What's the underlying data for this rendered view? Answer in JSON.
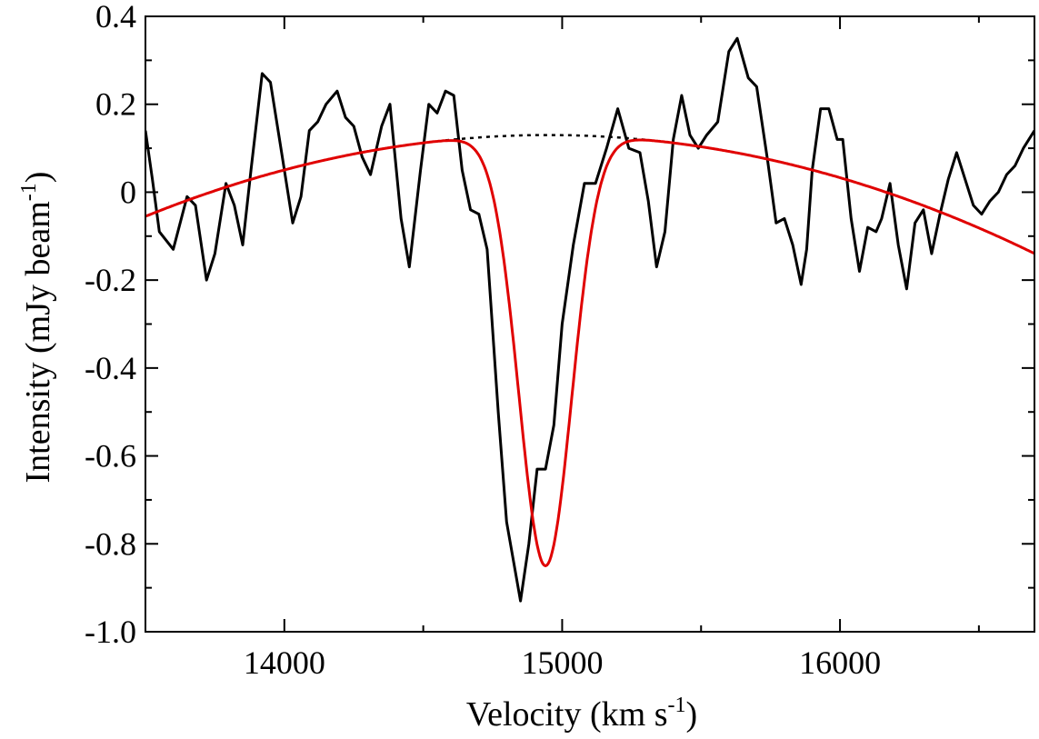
{
  "chart_data": {
    "type": "line",
    "title": "",
    "xlabel": "Velocity (km s",
    "xlabel_sup": "-1",
    "xlabel_close": ")",
    "ylabel": "Intensity (mJy beam",
    "ylabel_sup": "-1",
    "ylabel_close": ")",
    "xlim": [
      13500,
      16700
    ],
    "ylim": [
      -1.0,
      0.4
    ],
    "x_ticks": [
      14000,
      15000,
      16000
    ],
    "x_tick_labels": [
      "14000",
      "15000",
      "16000"
    ],
    "y_ticks": [
      -1.0,
      -0.8,
      -0.6,
      -0.4,
      -0.2,
      0,
      0.2,
      0.4
    ],
    "y_tick_labels": [
      "-1.0",
      "-0.8",
      "-0.6",
      "-0.4",
      "-0.2",
      "0",
      "0.2",
      "0.4"
    ],
    "grid": false,
    "colors": {
      "spectrum": "#000000",
      "fit": "#e00000",
      "baseline": "#000000"
    },
    "series": [
      {
        "name": "spectrum",
        "style": "solid",
        "x": [
          13500,
          13525,
          13550,
          13600,
          13650,
          13680,
          13720,
          13750,
          13790,
          13820,
          13850,
          13880,
          13920,
          13950,
          13990,
          14030,
          14060,
          14090,
          14120,
          14150,
          14190,
          14220,
          14250,
          14280,
          14310,
          14350,
          14380,
          14420,
          14450,
          14490,
          14520,
          14550,
          14580,
          14610,
          14640,
          14670,
          14700,
          14730,
          14770,
          14800,
          14850,
          14880,
          14910,
          14940,
          14970,
          15000,
          15040,
          15080,
          15120,
          15160,
          15200,
          15240,
          15280,
          15310,
          15340,
          15370,
          15400,
          15430,
          15460,
          15490,
          15520,
          15560,
          15600,
          15630,
          15670,
          15700,
          15740,
          15770,
          15800,
          15830,
          15860,
          15880,
          15900,
          15930,
          15960,
          15990,
          16010,
          16040,
          16070,
          16100,
          16130,
          16150,
          16180,
          16210,
          16240,
          16270,
          16300,
          16330,
          16360,
          16390,
          16420,
          16450,
          16480,
          16510,
          16540,
          16570,
          16600,
          16630,
          16660,
          16700
        ],
        "y": [
          0.14,
          0.03,
          -0.09,
          -0.13,
          -0.01,
          -0.03,
          -0.2,
          -0.14,
          0.02,
          -0.03,
          -0.12,
          0.05,
          0.27,
          0.25,
          0.09,
          -0.07,
          -0.01,
          0.14,
          0.16,
          0.2,
          0.23,
          0.17,
          0.15,
          0.08,
          0.04,
          0.15,
          0.2,
          -0.06,
          -0.17,
          0.05,
          0.2,
          0.18,
          0.23,
          0.22,
          0.05,
          -0.04,
          -0.05,
          -0.13,
          -0.5,
          -0.75,
          -0.93,
          -0.8,
          -0.63,
          -0.63,
          -0.53,
          -0.3,
          -0.12,
          0.02,
          0.02,
          0.1,
          0.19,
          0.1,
          0.09,
          -0.02,
          -0.17,
          -0.09,
          0.12,
          0.22,
          0.13,
          0.1,
          0.13,
          0.16,
          0.32,
          0.35,
          0.26,
          0.24,
          0.07,
          -0.07,
          -0.06,
          -0.12,
          -0.21,
          -0.13,
          0.05,
          0.19,
          0.19,
          0.12,
          0.12,
          -0.06,
          -0.18,
          -0.08,
          -0.09,
          -0.06,
          0.02,
          -0.12,
          -0.22,
          -0.07,
          -0.04,
          -0.14,
          -0.05,
          0.03,
          0.09,
          0.03,
          -0.03,
          -0.05,
          -0.02,
          0.0,
          0.04,
          0.06,
          0.1,
          0.14
        ]
      },
      {
        "name": "gaussian fit",
        "style": "solid",
        "model": {
          "baseline_peak": 0.13,
          "baseline_center": 14950,
          "baseline_curvature": 0.088,
          "amplitude": 0.98,
          "center": 14940,
          "sigma": 95
        }
      },
      {
        "name": "baseline",
        "style": "dotted",
        "x_range": [
          14580,
          15300
        ]
      }
    ]
  }
}
